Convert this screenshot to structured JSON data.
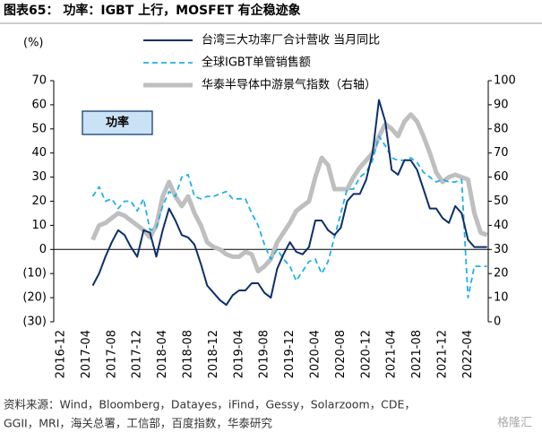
{
  "chart_data": {
    "type": "line",
    "title": "图表65： 功率：IGBT 上行，MOSFET 有企稳迹象",
    "y_label": "(%)",
    "annotation": "功率",
    "source": [
      "资料来源：Wind，Bloomberg，Datayes，iFind，Gessy，Solarzoom，CDE，",
      "GGII，MRI，海关总署，工信部，百度指数，华泰研究"
    ],
    "watermark": "格隆汇",
    "categories": [
      "2016-12",
      null,
      null,
      null,
      "2017-04",
      null,
      null,
      null,
      "2017-08",
      null,
      null,
      null,
      "2017-12",
      null,
      null,
      null,
      "2018-04",
      null,
      null,
      null,
      "2018-08",
      null,
      null,
      null,
      "2018-12",
      null,
      null,
      null,
      "2019-04",
      null,
      null,
      null,
      "2019-08",
      null,
      null,
      null,
      "2019-12",
      null,
      null,
      null,
      "2020-04",
      null,
      null,
      null,
      "2020-08",
      null,
      null,
      null,
      "2020-12",
      null,
      null,
      null,
      "2021-04",
      null,
      null,
      null,
      "2021-08",
      null,
      null,
      null,
      "2021-12",
      null,
      null,
      null,
      "2022-04",
      null,
      null,
      null
    ],
    "ylim": [
      -30,
      70
    ],
    "yticks": [
      {
        "value": -30,
        "label": "(30)"
      },
      {
        "value": -20,
        "label": "(20)"
      },
      {
        "value": -10,
        "label": "(10)"
      },
      0,
      10,
      20,
      30,
      40,
      50,
      60,
      70
    ],
    "y2lim": [
      0,
      100
    ],
    "y2ticks": [
      0,
      10,
      20,
      30,
      40,
      50,
      60,
      70,
      80,
      90,
      100
    ],
    "series": [
      {
        "name": "台湾三大功率厂合计营收 当月同比",
        "color": "#0b2f6b",
        "style": "solid",
        "values": [
          null,
          null,
          null,
          null,
          null,
          -15,
          -10,
          -3,
          3,
          8,
          6,
          1,
          -3,
          8,
          7,
          -3,
          8,
          17,
          12,
          6,
          5,
          2,
          -6,
          -15,
          -18,
          -21,
          -23,
          -19,
          -17,
          -17,
          -14,
          -14,
          -18,
          -20,
          -8,
          -2,
          3,
          -1,
          -2,
          1,
          12,
          12,
          8,
          6,
          9,
          20,
          23,
          23,
          29,
          40,
          62,
          53,
          33,
          31,
          37,
          37,
          33,
          25,
          17,
          17,
          13,
          11,
          18,
          15,
          4,
          1,
          1,
          1
        ]
      },
      {
        "name": "全球IGBT单管销售额",
        "color": "#1fb1e6",
        "style": "dashed",
        "values": [
          null,
          null,
          null,
          null,
          null,
          22,
          26,
          20,
          21,
          17,
          20,
          20,
          16,
          21,
          8,
          9,
          18,
          24,
          22,
          30,
          31,
          22,
          21,
          22,
          22,
          23,
          24,
          21,
          21,
          21,
          15,
          10,
          2,
          -4,
          0,
          -4,
          -7,
          -13,
          -9,
          -5,
          -4,
          -10,
          -5,
          5,
          15,
          25,
          25,
          30,
          32,
          37,
          47,
          43,
          38,
          37,
          37,
          38,
          36,
          32,
          30,
          28,
          29,
          28,
          28,
          29,
          -20,
          -7,
          -7,
          -7
        ]
      },
      {
        "name": "华泰半导体中游景气指数（右轴）",
        "color": "#bfbfbf",
        "style": "thick",
        "axis": "y2",
        "values": [
          null,
          null,
          null,
          null,
          null,
          34,
          40,
          41,
          43,
          45,
          44,
          42,
          40,
          38,
          35,
          40,
          52,
          58,
          52,
          48,
          52,
          45,
          40,
          33,
          31,
          30,
          28,
          27,
          27,
          29,
          28,
          21,
          23,
          26,
          33,
          37,
          41,
          46,
          48,
          50,
          60,
          68,
          65,
          55,
          55,
          55,
          60,
          64,
          67,
          70,
          77,
          82,
          80,
          77,
          83,
          86,
          83,
          77,
          70,
          62,
          58,
          60,
          61,
          60,
          59,
          45,
          37,
          36
        ]
      }
    ]
  }
}
